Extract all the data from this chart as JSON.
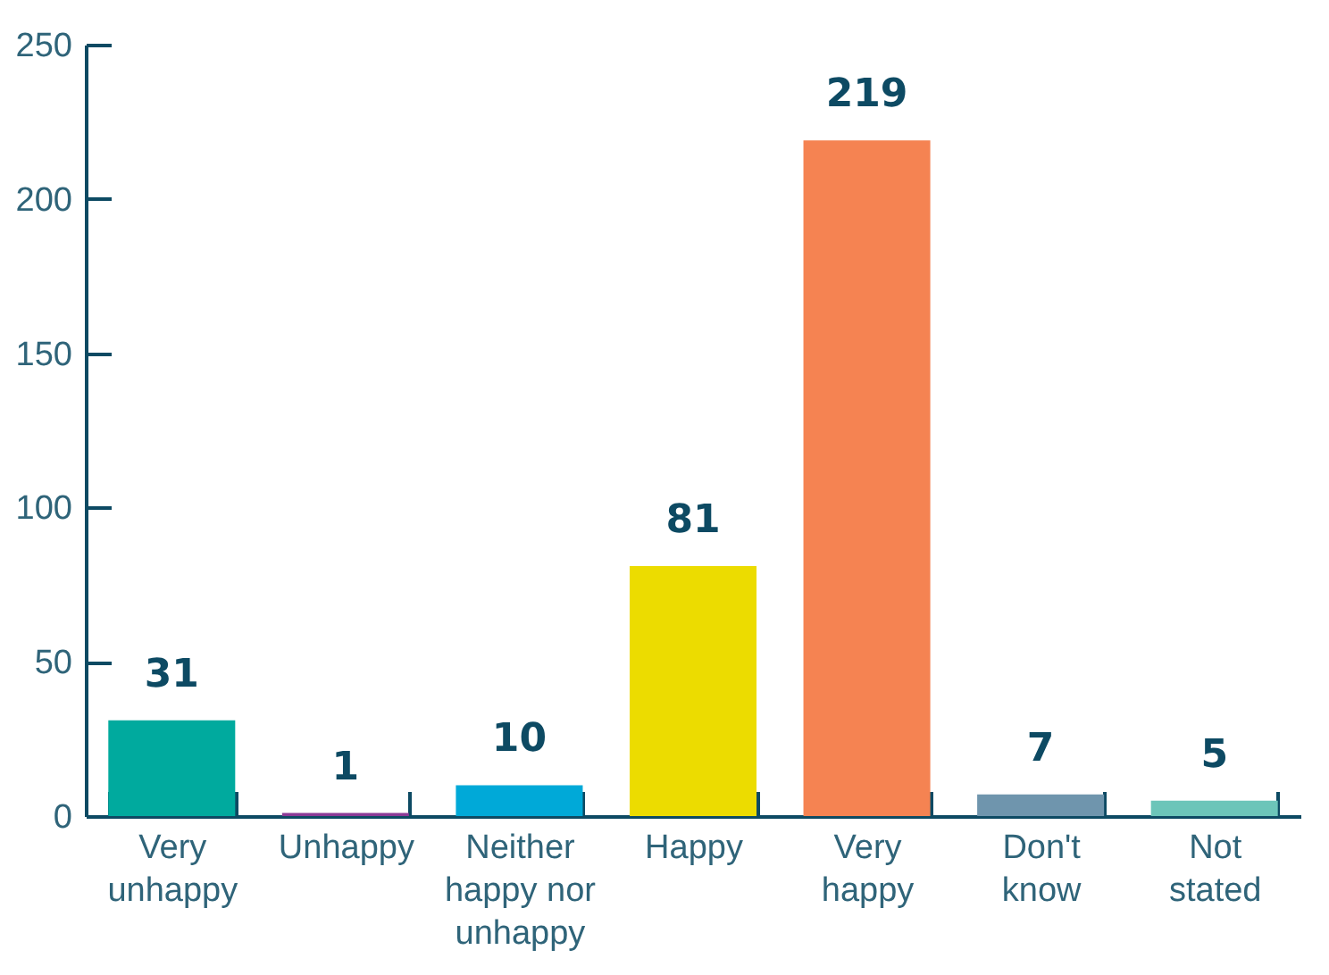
{
  "chart_data": {
    "type": "bar",
    "categories": [
      "Very unhappy",
      "Unhappy",
      "Neither happy nor unhappy",
      "Happy",
      "Very happy",
      "Don't know",
      "Not stated"
    ],
    "values": [
      31,
      1,
      10,
      81,
      219,
      7,
      5
    ],
    "colors": [
      "#00aa9e",
      "#8b3a96",
      "#00a9d8",
      "#ecdc00",
      "#f58352",
      "#6f95ad",
      "#6cc5b9"
    ],
    "ylim": [
      0,
      250
    ],
    "yticks": [
      0,
      50,
      100,
      150,
      200,
      250
    ],
    "grid": false,
    "data_labels": true
  }
}
